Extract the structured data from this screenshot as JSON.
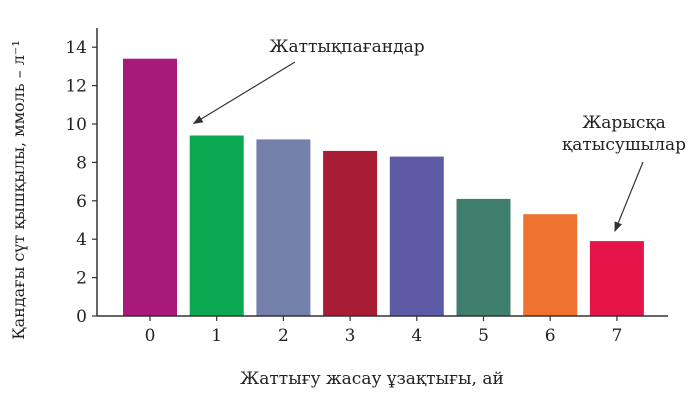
{
  "chart_data": {
    "type": "bar",
    "categories": [
      "0",
      "1",
      "2",
      "3",
      "4",
      "5",
      "6",
      "7"
    ],
    "values": [
      13.4,
      9.4,
      9.2,
      8.6,
      8.3,
      6.1,
      5.3,
      3.9
    ],
    "colors": [
      "#a8197a",
      "#0aa851",
      "#7482ab",
      "#a81c34",
      "#5d5aa6",
      "#3f7e6c",
      "#ee7331",
      "#e5154a"
    ],
    "xlabel": "Жаттығу жасау ұзақтығы, ай",
    "ylabel": "Қандағы сүт қышқылы, ммоль – л⁻¹",
    "ylim": [
      0,
      15
    ],
    "yticks": [
      0,
      2,
      4,
      6,
      8,
      10,
      12,
      14
    ],
    "grid": false,
    "annotations": [
      {
        "lines": [
          "Жаттықпағандар"
        ],
        "target_category": "1"
      },
      {
        "lines": [
          "Жарысқа",
          "қатысушылар"
        ],
        "target_category": "7"
      }
    ]
  }
}
